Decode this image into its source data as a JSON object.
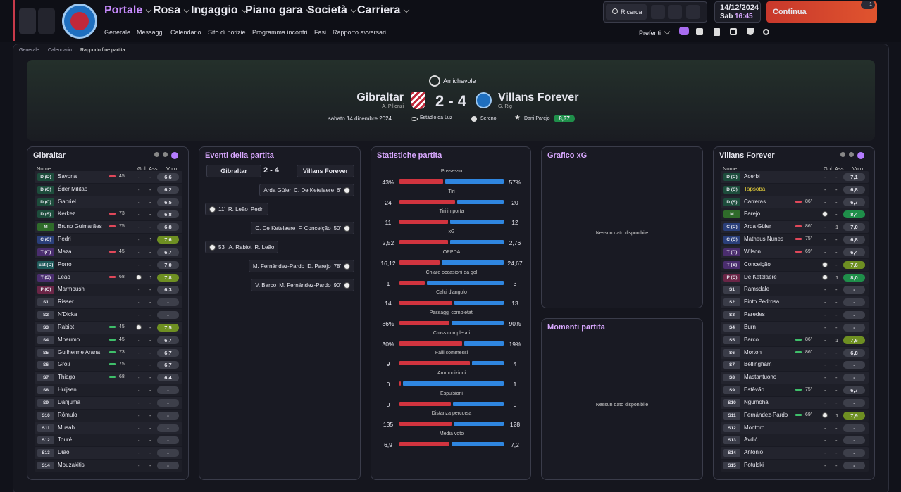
{
  "nav": {
    "tabs": [
      "Portale",
      "Rosa",
      "Ingaggio",
      "Piano gara",
      "Società",
      "Carriera"
    ],
    "subnav": [
      "Generale",
      "Messaggi",
      "Calendario",
      "Sito di notizie",
      "Programma incontri",
      "Fasi",
      "Rapporto avversari"
    ],
    "search": "Ricerca",
    "date": "14/12/2024",
    "day": "Sab",
    "time": "16:45",
    "continue": "Continua",
    "badge": "1",
    "favourites": "Preferiti"
  },
  "breadcrumb": [
    "Generale",
    "Calendario",
    "Rapporto fine partita"
  ],
  "match": {
    "competition": "Amichevole",
    "home": "Gibraltar",
    "home_manager": "A. Pillonzi",
    "score": "2 - 4",
    "away": "Villans Forever",
    "away_manager": "G. Rig",
    "date": "sabato 14 dicembre 2024",
    "stadium": "Estádio da Luz",
    "weather": "Sereno",
    "player_of_match": "Dani Parejo",
    "player_rating": "8,37"
  },
  "home_lineup": {
    "title": "Gibraltar",
    "headers": [
      "Nome",
      "Gol",
      "Ass",
      "Voto"
    ],
    "rows": [
      {
        "pos": "D (D)",
        "name": "Savona",
        "sub": "45'",
        "gol": "-",
        "ass": "-",
        "voto": "6,6"
      },
      {
        "pos": "D (C)",
        "name": "Éder Militão",
        "gol": "-",
        "ass": "-",
        "voto": "6,2"
      },
      {
        "pos": "D (C)",
        "name": "Gabriel",
        "gol": "-",
        "ass": "-",
        "voto": "6,5"
      },
      {
        "pos": "D (S)",
        "name": "Kerkez",
        "sub": "73'",
        "gol": "-",
        "ass": "-",
        "voto": "6,8"
      },
      {
        "pos": "M",
        "name": "Bruno Guimarães",
        "sub": "75'",
        "gol": "-",
        "ass": "-",
        "voto": "6,8"
      },
      {
        "pos": "C (C)",
        "name": "Pedri",
        "gol": "-",
        "ass": "1",
        "voto": "7,6"
      },
      {
        "pos": "T (C)",
        "name": "Maza",
        "sub": "45'",
        "gol": "-",
        "ass": "-",
        "voto": "6,7"
      },
      {
        "pos": "Est (D)",
        "name": "Porro",
        "gol": "-",
        "ass": "-",
        "voto": "7,0"
      },
      {
        "pos": "T (S)",
        "name": "Leão",
        "sub": "68'",
        "ass": "1",
        "voto": "7,8"
      },
      {
        "pos": "P (C)",
        "name": "Marmoush",
        "gol": "-",
        "ass": "-",
        "voto": "6,3"
      },
      {
        "pos": "S1",
        "name": "Risser",
        "gol": "-",
        "ass": "-",
        "voto": "-"
      },
      {
        "pos": "S2",
        "name": "N'Dicka",
        "gol": "-",
        "ass": "-",
        "voto": "-"
      },
      {
        "pos": "S3",
        "name": "Rabiot",
        "sub": "45'",
        "ass": "-",
        "voto": "7,5"
      },
      {
        "pos": "S4",
        "name": "Mbeumo",
        "sub": "45'",
        "gol": "-",
        "ass": "-",
        "voto": "6,7"
      },
      {
        "pos": "S5",
        "name": "Guilherme Arana",
        "sub": "73'",
        "gol": "-",
        "ass": "-",
        "voto": "6,7"
      },
      {
        "pos": "S6",
        "name": "Groß",
        "sub": "75'",
        "gol": "-",
        "ass": "-",
        "voto": "6,7"
      },
      {
        "pos": "S7",
        "name": "Thiago",
        "sub": "68'",
        "gol": "-",
        "ass": "-",
        "voto": "6,4"
      },
      {
        "pos": "S8",
        "name": "Huijsen",
        "gol": "-",
        "ass": "-",
        "voto": "-"
      },
      {
        "pos": "S9",
        "name": "Danjuma",
        "gol": "-",
        "ass": "-",
        "voto": "-"
      },
      {
        "pos": "S10",
        "name": "Rômulo",
        "gol": "-",
        "ass": "-",
        "voto": "-"
      },
      {
        "pos": "S11",
        "name": "Musah",
        "gol": "-",
        "ass": "-",
        "voto": "-"
      },
      {
        "pos": "S12",
        "name": "Touré",
        "gol": "-",
        "ass": "-",
        "voto": "-"
      },
      {
        "pos": "S13",
        "name": "Diao",
        "gol": "-",
        "ass": "-",
        "voto": "-"
      },
      {
        "pos": "S14",
        "name": "Mouzakitis",
        "gol": "-",
        "ass": "-",
        "voto": "-"
      }
    ]
  },
  "events": {
    "title": "Eventi della partita",
    "home": "Gibraltar",
    "score": "2 - 4",
    "away": "Villans Forever",
    "items": [
      {
        "side": "away",
        "minute": "6'",
        "scorer": "C. De Ketelaere",
        "assist": "Arda Güler"
      },
      {
        "side": "home",
        "minute": "11'",
        "scorer": "R. Leão",
        "assist": "Pedri"
      },
      {
        "side": "away",
        "minute": "50'",
        "scorer": "F. Conceição",
        "assist": "C. De Ketelaere"
      },
      {
        "side": "home",
        "minute": "53'",
        "scorer": "A. Rabiot",
        "assist": "R. Leão"
      },
      {
        "side": "away",
        "minute": "78'",
        "scorer": "D. Parejo",
        "assist": "M. Fernández-Pardo"
      },
      {
        "side": "away",
        "minute": "90'",
        "scorer": "M. Fernández-Pardo",
        "assist": "V. Barco"
      }
    ]
  },
  "stats": {
    "title": "Statistiche partita",
    "items": [
      {
        "label": "Possesso",
        "values": [
          43,
          57
        ],
        "value_labels": [
          "43%",
          "57%"
        ]
      },
      {
        "label": "Tiri",
        "values": [
          24,
          20
        ]
      },
      {
        "label": "Tiri in porta",
        "values": [
          11,
          12
        ]
      },
      {
        "label": "xG",
        "values": [
          2.52,
          2.76
        ],
        "value_labels": [
          "2,52",
          "2,76"
        ]
      },
      {
        "label": "OPPDA",
        "values": [
          16.12,
          24.67
        ],
        "value_labels": [
          "16,12",
          "24,67"
        ]
      },
      {
        "label": "Chiare occasioni da gol",
        "values": [
          1,
          3
        ]
      },
      {
        "label": "Calci d'angolo",
        "values": [
          14,
          13
        ]
      },
      {
        "label": "Passaggi completati",
        "values": [
          86,
          90
        ],
        "value_labels": [
          "86%",
          "90%"
        ]
      },
      {
        "label": "Cross completati",
        "values": [
          30,
          19
        ],
        "value_labels": [
          "30%",
          "19%"
        ]
      },
      {
        "label": "Falli commessi",
        "values": [
          9,
          4
        ]
      },
      {
        "label": "Ammonizioni",
        "values": [
          0,
          1
        ]
      },
      {
        "label": "Espulsioni",
        "values": [
          0,
          0
        ]
      },
      {
        "label": "Distanza percorsa",
        "values": [
          135,
          128
        ]
      },
      {
        "label": "Media voto",
        "values": [
          6.9,
          7.2
        ],
        "value_labels": [
          "6,9",
          "7,2"
        ]
      }
    ]
  },
  "xg": {
    "title": "Grafico xG",
    "empty": "Nessun dato disponibile"
  },
  "moments": {
    "title": "Momenti partita",
    "empty": "Nessun dato disponibile"
  },
  "away_lineup": {
    "title": "Villans Forever",
    "headers": [
      "Nome",
      "Gol",
      "Ass",
      "Voto"
    ],
    "rows": [
      {
        "pos": "D (C)",
        "name": "Acerbi",
        "gol": "-",
        "ass": "-",
        "voto": "7,1"
      },
      {
        "pos": "D (C)",
        "name": "Tapsoba",
        "gol": "-",
        "ass": "-",
        "voto": "6,8"
      },
      {
        "pos": "D (S)",
        "name": "Carreras",
        "sub": "86'",
        "gol": "-",
        "ass": "-",
        "voto": "6,7"
      },
      {
        "pos": "M",
        "name": "Parejo",
        "ass": "-",
        "voto": "8,4"
      },
      {
        "pos": "C (C)",
        "name": "Arda Güler",
        "sub": "86'",
        "gol": "-",
        "ass": "1",
        "voto": "7,0"
      },
      {
        "pos": "C (C)",
        "name": "Matheus Nunes",
        "sub": "75'",
        "gol": "-",
        "ass": "-",
        "voto": "6,8"
      },
      {
        "pos": "T (D)",
        "name": "Wilson",
        "sub": "69'",
        "gol": "-",
        "ass": "-",
        "voto": "6,4"
      },
      {
        "pos": "T (S)",
        "name": "Conceição",
        "ass": "-",
        "voto": "7,6"
      },
      {
        "pos": "P (C)",
        "name": "De Ketelaere",
        "ass": "1",
        "voto": "8,0"
      },
      {
        "pos": "S1",
        "name": "Ramsdale",
        "gol": "-",
        "ass": "-",
        "voto": "-"
      },
      {
        "pos": "S2",
        "name": "Pinto Pedrosa",
        "gol": "-",
        "ass": "-",
        "voto": "-"
      },
      {
        "pos": "S3",
        "name": "Paredes",
        "gol": "-",
        "ass": "-",
        "voto": "-"
      },
      {
        "pos": "S4",
        "name": "Burn",
        "gol": "-",
        "ass": "-",
        "voto": "-"
      },
      {
        "pos": "S5",
        "name": "Barco",
        "sub": "86'",
        "gol": "-",
        "ass": "1",
        "voto": "7,6"
      },
      {
        "pos": "S6",
        "name": "Morton",
        "sub": "86'",
        "gol": "-",
        "ass": "-",
        "voto": "6,8"
      },
      {
        "pos": "S7",
        "name": "Bellingham",
        "gol": "-",
        "ass": "-",
        "voto": "-"
      },
      {
        "pos": "S8",
        "name": "Mastantuono",
        "gol": "-",
        "ass": "-",
        "voto": "-"
      },
      {
        "pos": "S9",
        "name": "Estêvão",
        "sub": "75'",
        "gol": "-",
        "ass": "-",
        "voto": "6,7"
      },
      {
        "pos": "S10",
        "name": "Ngumoha",
        "gol": "-",
        "ass": "-",
        "voto": "-"
      },
      {
        "pos": "S11",
        "name": "Fernández-Pardo",
        "sub": "69'",
        "ass": "1",
        "voto": "7,9"
      },
      {
        "pos": "S12",
        "name": "Montoro",
        "gol": "-",
        "ass": "-",
        "voto": "-"
      },
      {
        "pos": "S13",
        "name": "Avdić",
        "gol": "-",
        "ass": "-",
        "voto": "-"
      },
      {
        "pos": "S14",
        "name": "Antonio",
        "gol": "-",
        "ass": "-",
        "voto": "-"
      },
      {
        "pos": "S15",
        "name": "Potulski",
        "gol": "-",
        "ass": "-",
        "voto": "-"
      }
    ]
  }
}
